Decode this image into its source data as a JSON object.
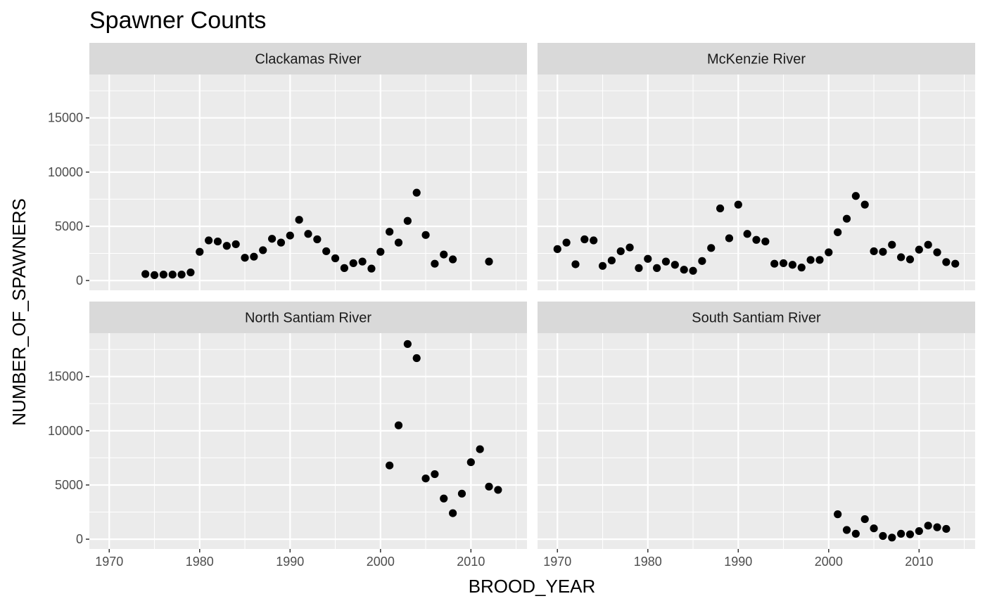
{
  "chart_data": {
    "type": "scatter",
    "title": "Spawner Counts",
    "xlabel": "BROOD_YEAR",
    "ylabel": "NUMBER_OF_SPAWNERS",
    "xlim": [
      1967.8,
      2016.2
    ],
    "ylim": [
      -900,
      19000
    ],
    "x_ticks": [
      1970,
      1980,
      1990,
      2000,
      2010
    ],
    "x_tick_labels": [
      "1970",
      "1980",
      "1990",
      "2000",
      "2010"
    ],
    "y_ticks": [
      0,
      5000,
      10000,
      15000
    ],
    "y_tick_labels": [
      "0",
      "5000",
      "10000",
      "15000"
    ],
    "grid": true,
    "legend": "none",
    "point_color": "#000000",
    "panel_background": "#ebebeb",
    "strip_background": "#d9d9d9",
    "panels": [
      {
        "name": "Clackamas River",
        "points": [
          [
            1974,
            600
          ],
          [
            1975,
            500
          ],
          [
            1976,
            550
          ],
          [
            1977,
            550
          ],
          [
            1978,
            550
          ],
          [
            1979,
            750
          ],
          [
            1980,
            2650
          ],
          [
            1981,
            3700
          ],
          [
            1982,
            3600
          ],
          [
            1983,
            3200
          ],
          [
            1984,
            3350
          ],
          [
            1985,
            2100
          ],
          [
            1986,
            2200
          ],
          [
            1987,
            2800
          ],
          [
            1988,
            3850
          ],
          [
            1989,
            3500
          ],
          [
            1990,
            4150
          ],
          [
            1991,
            5600
          ],
          [
            1992,
            4300
          ],
          [
            1993,
            3800
          ],
          [
            1994,
            2700
          ],
          [
            1995,
            2050
          ],
          [
            1996,
            1150
          ],
          [
            1997,
            1600
          ],
          [
            1998,
            1750
          ],
          [
            1999,
            1100
          ],
          [
            2000,
            2650
          ],
          [
            2001,
            4500
          ],
          [
            2002,
            3500
          ],
          [
            2003,
            5500
          ],
          [
            2004,
            8100
          ],
          [
            2005,
            4200
          ],
          [
            2006,
            1550
          ],
          [
            2007,
            2400
          ],
          [
            2008,
            1950
          ],
          [
            2012,
            1750
          ]
        ]
      },
      {
        "name": "McKenzie River",
        "points": [
          [
            1970,
            2900
          ],
          [
            1971,
            3500
          ],
          [
            1972,
            1500
          ],
          [
            1973,
            3800
          ],
          [
            1974,
            3700
          ],
          [
            1975,
            1350
          ],
          [
            1976,
            1850
          ],
          [
            1977,
            2700
          ],
          [
            1978,
            3050
          ],
          [
            1979,
            1150
          ],
          [
            1980,
            2000
          ],
          [
            1981,
            1150
          ],
          [
            1982,
            1750
          ],
          [
            1983,
            1450
          ],
          [
            1984,
            1000
          ],
          [
            1985,
            900
          ],
          [
            1986,
            1800
          ],
          [
            1987,
            3000
          ],
          [
            1988,
            6650
          ],
          [
            1989,
            3900
          ],
          [
            1990,
            7000
          ],
          [
            1991,
            4300
          ],
          [
            1992,
            3750
          ],
          [
            1993,
            3600
          ],
          [
            1994,
            1550
          ],
          [
            1995,
            1600
          ],
          [
            1996,
            1450
          ],
          [
            1997,
            1200
          ],
          [
            1998,
            1900
          ],
          [
            1999,
            1900
          ],
          [
            2000,
            2600
          ],
          [
            2001,
            4450
          ],
          [
            2002,
            5700
          ],
          [
            2003,
            7800
          ],
          [
            2004,
            7000
          ],
          [
            2005,
            2700
          ],
          [
            2006,
            2650
          ],
          [
            2007,
            3300
          ],
          [
            2008,
            2150
          ],
          [
            2009,
            1950
          ],
          [
            2010,
            2850
          ],
          [
            2011,
            3300
          ],
          [
            2012,
            2600
          ],
          [
            2013,
            1700
          ],
          [
            2014,
            1550
          ]
        ]
      },
      {
        "name": "North Santiam River",
        "points": [
          [
            2001,
            6800
          ],
          [
            2002,
            10500
          ],
          [
            2003,
            18000
          ],
          [
            2004,
            16700
          ],
          [
            2005,
            5600
          ],
          [
            2006,
            6000
          ],
          [
            2007,
            3750
          ],
          [
            2008,
            2400
          ],
          [
            2009,
            4200
          ],
          [
            2010,
            7100
          ],
          [
            2011,
            8300
          ],
          [
            2012,
            4850
          ],
          [
            2013,
            4550
          ]
        ]
      },
      {
        "name": "South Santiam River",
        "points": [
          [
            2001,
            2300
          ],
          [
            2002,
            850
          ],
          [
            2003,
            500
          ],
          [
            2004,
            1850
          ],
          [
            2005,
            1000
          ],
          [
            2006,
            300
          ],
          [
            2007,
            150
          ],
          [
            2008,
            500
          ],
          [
            2009,
            450
          ],
          [
            2010,
            750
          ],
          [
            2011,
            1250
          ],
          [
            2012,
            1100
          ],
          [
            2013,
            950
          ]
        ]
      }
    ]
  }
}
